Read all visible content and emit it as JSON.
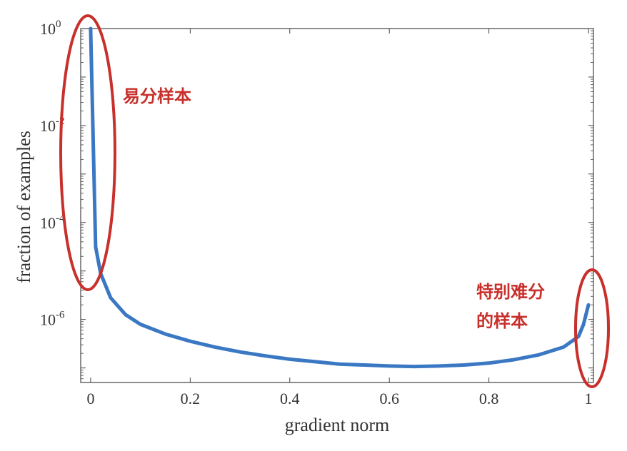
{
  "chart_data": {
    "type": "line",
    "xlabel": "gradient norm",
    "ylabel": "fraction of examples",
    "xlim": [
      -0.02,
      1.01
    ],
    "ylim_log10": [
      -7.3,
      0
    ],
    "y_scale": "log",
    "grid": false,
    "x_ticks": [
      {
        "value": 0,
        "label": "0"
      },
      {
        "value": 0.2,
        "label": "0.2"
      },
      {
        "value": 0.4,
        "label": "0.4"
      },
      {
        "value": 0.6,
        "label": "0.6"
      },
      {
        "value": 0.8,
        "label": "0.8"
      },
      {
        "value": 1,
        "label": "1"
      }
    ],
    "y_ticks": [
      {
        "exp": 0,
        "base": "10",
        "sup": "0"
      },
      {
        "exp": -2,
        "base": "10",
        "sup": "-2"
      },
      {
        "exp": -4,
        "base": "10",
        "sup": "-4"
      },
      {
        "exp": -6,
        "base": "10",
        "sup": "-6"
      }
    ],
    "series": [
      {
        "color": "#3a78c3",
        "points": [
          [
            0.0,
            0.0
          ],
          [
            0.01,
            -4.5
          ],
          [
            0.02,
            -5.05
          ],
          [
            0.04,
            -5.55
          ],
          [
            0.07,
            -5.9
          ],
          [
            0.1,
            -6.1
          ],
          [
            0.15,
            -6.3
          ],
          [
            0.2,
            -6.45
          ],
          [
            0.25,
            -6.57
          ],
          [
            0.3,
            -6.67
          ],
          [
            0.35,
            -6.75
          ],
          [
            0.4,
            -6.82
          ],
          [
            0.45,
            -6.87
          ],
          [
            0.5,
            -6.92
          ],
          [
            0.55,
            -6.94
          ],
          [
            0.6,
            -6.96
          ],
          [
            0.65,
            -6.97
          ],
          [
            0.7,
            -6.96
          ],
          [
            0.75,
            -6.94
          ],
          [
            0.8,
            -6.9
          ],
          [
            0.85,
            -6.83
          ],
          [
            0.9,
            -6.73
          ],
          [
            0.95,
            -6.57
          ],
          [
            0.98,
            -6.35
          ],
          [
            0.99,
            -6.1
          ],
          [
            1.0,
            -5.7
          ]
        ]
      }
    ],
    "annotations": [
      {
        "text": "易分样本",
        "lines": [
          "易分样本"
        ],
        "color": "#c8302c"
      },
      {
        "text": "特别难分的样本",
        "lines": [
          "特别难分",
          "的样本"
        ],
        "color": "#c8302c"
      }
    ]
  }
}
